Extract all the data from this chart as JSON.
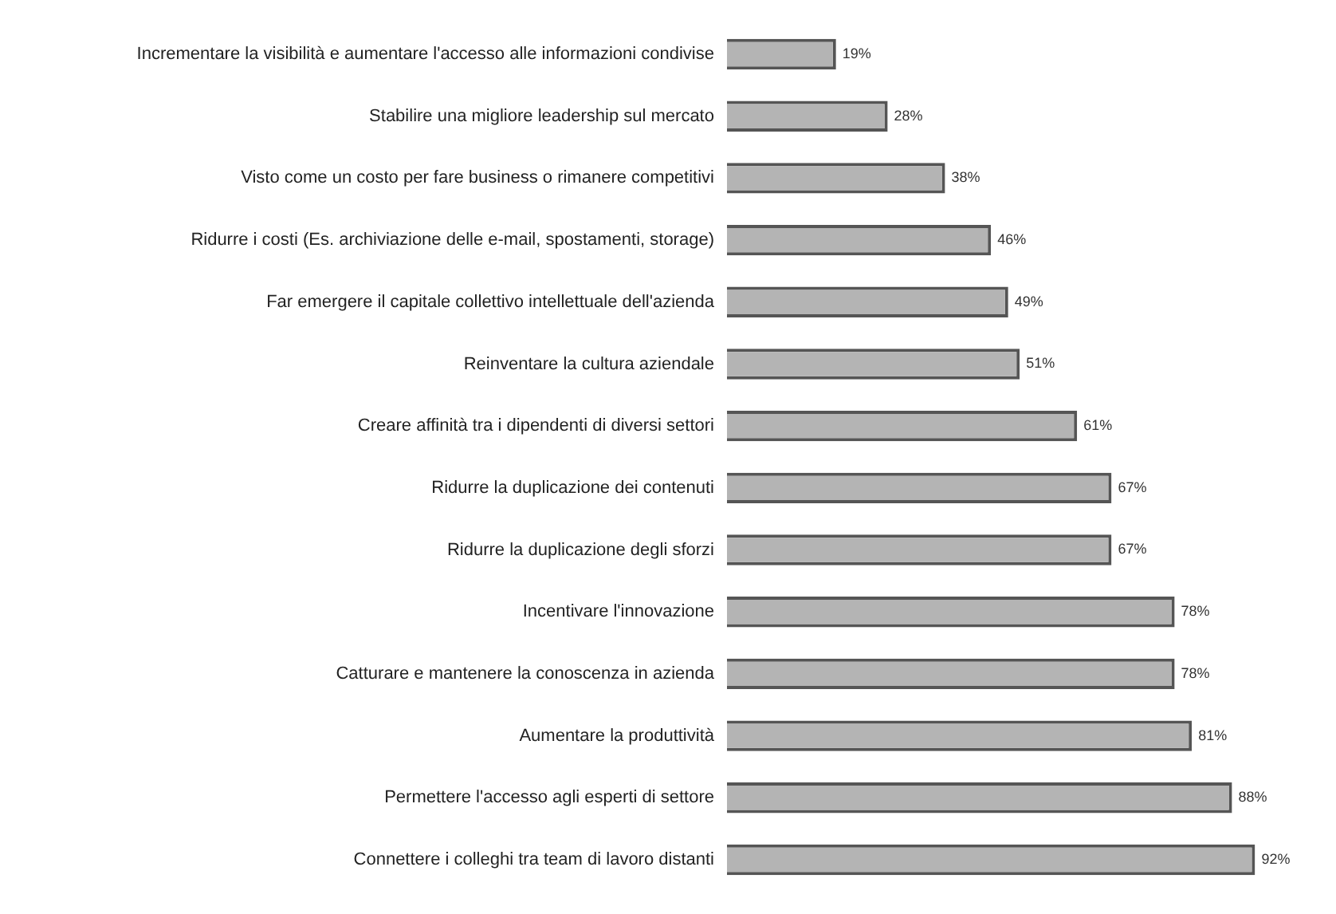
{
  "chart_data": {
    "type": "bar",
    "orientation": "horizontal",
    "categories": [
      "Incrementare la visibilità e aumentare l'accesso alle informazioni condivise",
      "Stabilire una migliore leadership sul mercato",
      "Visto come un costo per fare business o rimanere competitivi",
      "Ridurre i costi (Es. archiviazione delle e-mail, spostamenti, storage)",
      "Far emergere il capitale collettivo intellettuale dell'azienda",
      "Reinventare la cultura aziendale",
      "Creare affinità tra i dipendenti di diversi settori",
      "Ridurre la duplicazione dei contenuti",
      "Ridurre la duplicazione degli sforzi",
      "Incentivare l'innovazione",
      "Catturare e mantenere la conoscenza in azienda",
      "Aumentare la produttività",
      "Permettere l'accesso agli esperti di settore",
      "Connettere i colleghi tra team di lavoro distanti"
    ],
    "values": [
      19,
      28,
      38,
      46,
      49,
      51,
      61,
      67,
      67,
      78,
      78,
      81,
      88,
      92
    ],
    "value_labels": [
      "19%",
      "28%",
      "38%",
      "46%",
      "49%",
      "51%",
      "61%",
      "67%",
      "67%",
      "78%",
      "78%",
      "81%",
      "88%",
      "92%"
    ],
    "color": "#b4b4b4",
    "grid": false,
    "legend": false
  }
}
